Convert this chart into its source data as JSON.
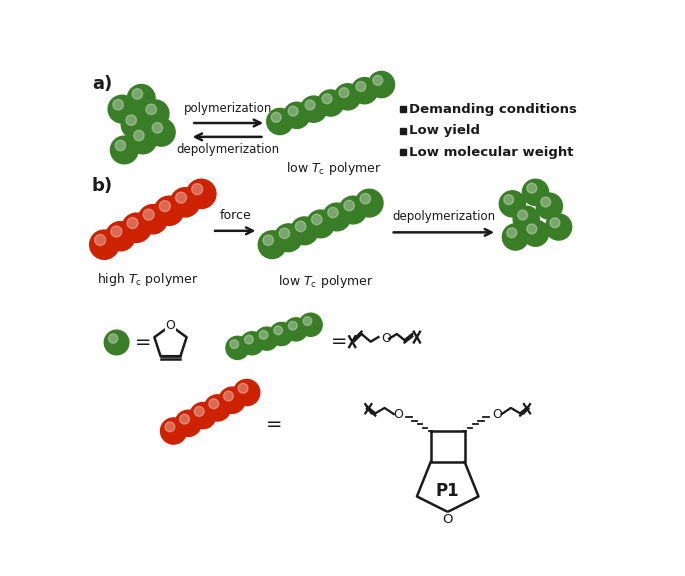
{
  "green_color": "#3a7d27",
  "red_color": "#cc2200",
  "arrow_color": "#1a1a1a",
  "bg_color": "#ffffff",
  "bullet_items": [
    "Demanding conditions",
    "Low yield",
    "Low molecular weight"
  ],
  "fig_width": 6.85,
  "fig_height": 5.76
}
